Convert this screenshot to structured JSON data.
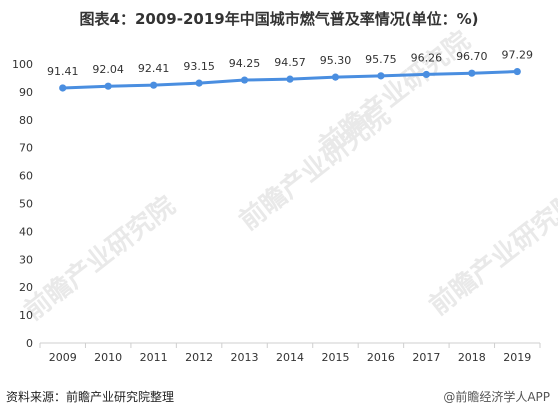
{
  "title": "图表4：2009-2019年中国城市燃气普及率情况(单位：%)",
  "source": "资料来源：前瞻产业研究院整理",
  "footer_logo_text": "@前瞻经济学人APP",
  "watermark_text": "前瞻产业研究院",
  "colors": {
    "line": "#4a8ee0",
    "axis": "#cfcfcf",
    "text": "#333333"
  },
  "chart_data": {
    "type": "line",
    "categories": [
      "2009",
      "2010",
      "2011",
      "2012",
      "2013",
      "2014",
      "2015",
      "2016",
      "2017",
      "2018",
      "2019"
    ],
    "values": [
      91.41,
      92.04,
      92.41,
      93.15,
      94.25,
      94.57,
      95.3,
      95.75,
      96.26,
      96.7,
      97.29
    ],
    "value_labels": [
      "91.41",
      "92.04",
      "92.41",
      "93.15",
      "94.25",
      "94.57",
      "95.30",
      "95.75",
      "96.26",
      "96.70",
      "97.29"
    ],
    "ylim": [
      0,
      100
    ],
    "yticks": [
      0,
      10,
      20,
      30,
      40,
      50,
      60,
      70,
      80,
      90,
      100
    ],
    "grid": false,
    "xlabel": "",
    "ylabel": ""
  }
}
